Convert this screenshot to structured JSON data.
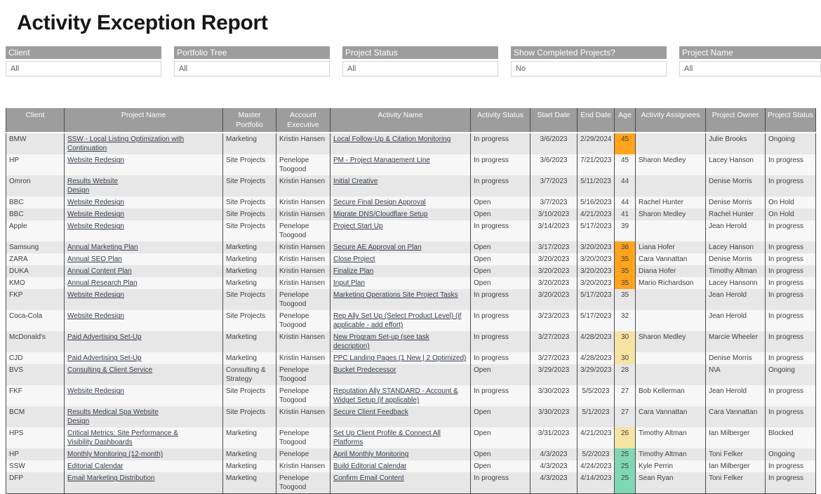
{
  "title": "Activity Exception Report",
  "filters": [
    {
      "label": "Client",
      "value": "All"
    },
    {
      "label": "Portfolio Tree",
      "value": "All"
    },
    {
      "label": "Project Status",
      "value": "All"
    },
    {
      "label": "Show Completed Projects?",
      "value": "No"
    },
    {
      "label": "Project Name",
      "value": "All"
    }
  ],
  "colors": {
    "header-gray": "#9d9d9d",
    "line-dark": "#4b4b4b",
    "age-orange": "#ffa41c",
    "age-yellow": "#f7e3a2",
    "age-teal": "#7fd8b4"
  },
  "table": {
    "columns": [
      "Client",
      "Project Name",
      "Master Portfolio",
      "Account Executive",
      "Activity Name",
      "Activity Status",
      "Start Date",
      "End Date",
      "Age",
      "Activity Assignees",
      "Project Owner",
      "Project Status"
    ],
    "rows": [
      {
        "cells": [
          "BMW",
          "SSW - Local Listing Optimization with Continuation",
          "Marketing",
          "Kristin Hansen",
          "Local Follow-Up & Citation Monitoring",
          "In progress",
          "3/6/2023",
          "2/29/2024",
          "45",
          "",
          "Julie Brooks",
          "Ongoing"
        ],
        "age_color": "orange"
      },
      {
        "cells": [
          "HP",
          "Website Redesign",
          "Site Projects",
          "Penelope Toogood",
          "PM - Project Management Line",
          "In progress",
          "3/6/2023",
          "7/21/2023",
          "45",
          "Sharon Medley",
          "Lacey Hanson",
          "In progress"
        ],
        "age_color": null
      },
      {
        "cells": [
          "Omron",
          "Results Website\nDesign",
          "Site Projects",
          "Kristin Hansen",
          "Initial Creative",
          "In progress",
          "3/7/2023",
          "5/11/2023",
          "44",
          "",
          "Denise Morris",
          "In progress"
        ],
        "age_color": null
      },
      {
        "cells": [
          "BBC",
          "Website Redesign",
          "Site Projects",
          "Kristin Hansen",
          "Secure Final Design Approval",
          "Open",
          "3/7/2023",
          "5/16/2023",
          "44",
          "Rachel Hunter",
          "Denise Morris",
          "On Hold"
        ],
        "age_color": null
      },
      {
        "cells": [
          "BBC",
          "Website Redesign",
          "Site Projects",
          "Kristin Hansen",
          "Migrate DNS/Cloudflare Setup",
          "Open",
          "3/10/2023",
          "4/21/2023",
          "41",
          "Sharon Medley",
          "Rachel Hunter",
          "On Hold"
        ],
        "age_color": null
      },
      {
        "cells": [
          "Apple",
          "Website Redesign",
          "Site Projects",
          "Penelope Toogood",
          "Project Start Up",
          "In progress",
          "3/14/2023",
          "5/17/2023",
          "39",
          "",
          "Jean Herold",
          "In progress"
        ],
        "age_color": null
      },
      {
        "cells": [
          "Samsung",
          "Annual Marketing Plan",
          "Marketing",
          "Kristin Hansen",
          "Secure AE Approval on Plan",
          "Open",
          "3/17/2023",
          "3/20/2023",
          "36",
          "Liana Hofer",
          "Lacey Hanson",
          "In progress"
        ],
        "age_color": "orange"
      },
      {
        "cells": [
          "ZARA",
          "Annual SEO Plan",
          "Marketing",
          "Kristin Hansen",
          "Close Project",
          "Open",
          "3/20/2023",
          "3/20/2023",
          "35",
          "Cara Vannattan",
          "Denise Morris",
          "In progress"
        ],
        "age_color": "orange"
      },
      {
        "cells": [
          "DUKA",
          "Annual Content Plan",
          "Marketing",
          "Kristin Hansen",
          "Finalize Plan",
          "Open",
          "3/20/2023",
          "3/20/2023",
          "35",
          "Diana Hofer",
          "Timothy Altman",
          "In progress"
        ],
        "age_color": "orange"
      },
      {
        "cells": [
          "KMO",
          "Annual Research Plan",
          "Marketing",
          "Kristin Hansen",
          "Input Plan",
          "Open",
          "3/20/2023",
          "3/20/2023",
          "35",
          "Mario Richardson",
          "Lacey Hansonn",
          "In progress"
        ],
        "age_color": "orange"
      },
      {
        "cells": [
          "FKP",
          "Website Redesign",
          "Site Projects",
          "Penelope Toogood",
          "Marketing Operations Site Project Tasks",
          "In progress",
          "3/20/2023",
          "5/17/2023",
          "35",
          "",
          "Jean Herold",
          "In progress"
        ],
        "age_color": null
      },
      {
        "cells": [
          "Coca-Cola",
          "Website Redesign",
          "Site Projects",
          "Penelope Toogood",
          "Rep Ally Set Up (Select Product Level) (if applicable - add effort)",
          "In progress",
          "3/23/2023",
          "5/17/2023",
          "32",
          "",
          "Jean Herold",
          "In progress"
        ],
        "age_color": null
      },
      {
        "cells": [
          "McDonald's",
          "Paid Advertising Set-Up",
          "Marketing",
          "Kristin Hansen",
          "New Program Set-up (see task description)",
          "In progress",
          "3/27/2023",
          "4/28/2023",
          "30",
          "Sharon Medley",
          "Marcie Wheeler",
          "In progress"
        ],
        "age_color": "yellow"
      },
      {
        "cells": [
          "CJD",
          "Paid Advertising Set-Up",
          "Marketing",
          "Kristin Hansen",
          "PPC Landing Pages (1 New | 2 Optimized)",
          "In progress",
          "3/27/2023",
          "4/28/2023",
          "30",
          "",
          "Denise Morris",
          "In progress"
        ],
        "age_color": "yellow"
      },
      {
        "cells": [
          "BVS",
          "Consulting & Client Service",
          "Consulting & Strategy",
          "Penelope Toogood",
          "Bucket Predecessor",
          "Open",
          "3/29/2023",
          "3/29/2023",
          "28",
          "",
          "N\\A",
          "Ongoing"
        ],
        "age_color": null
      },
      {
        "cells": [
          "FKF",
          "Website Redesign",
          "Site Projects",
          "Penelope Toogood",
          "Reputation Ally STANDARD - Account & Widget Setup (if applicable)",
          "In progress",
          "3/30/2023",
          "5/5/2023",
          "27",
          "Bob Kellerman",
          "Jean Herold",
          "In progress"
        ],
        "age_color": null
      },
      {
        "cells": [
          "BCM",
          "Results Medical Spa Website\nDesign",
          "Site Projects",
          "Kristin Hansen",
          "Secure Client Feedback",
          "Open",
          "3/30/2023",
          "5/1/2023",
          "27",
          "Cara Vannattan",
          "Cara Vannattan",
          "In progress"
        ],
        "age_color": null
      },
      {
        "cells": [
          "HPS",
          "Critical Metrics: Site Performance &\nVisibility Dashboards",
          "Marketing",
          "Penelope Toogood",
          "Set Up Client Profile & Connect All\nPlatforms",
          "Open",
          "3/31/2023",
          "4/21/2023",
          "26",
          "Timothy Altman",
          "Ian Milberger",
          "Blocked"
        ],
        "age_color": "yellow"
      },
      {
        "cells": [
          "HP",
          "Monthly Monitoring (12-month)",
          "Marketing",
          "Penelope",
          "April Monthly Monitoring",
          "Open",
          "4/3/2023",
          "5/2/2023",
          "25",
          "Timothy Altman",
          "Toni Felker",
          "Ongoing"
        ],
        "age_color": "teal"
      },
      {
        "cells": [
          "SSW",
          "Editorial Calendar",
          "Marketing",
          "Kristin Hansen",
          "Build Editorial Calendar",
          "Open",
          "4/3/2023",
          "4/24/2023",
          "25",
          "Kyle Perrin",
          "Ian Milberger",
          "In progress"
        ],
        "age_color": "teal"
      },
      {
        "cells": [
          "DFP",
          "Email Marketing Distribution",
          "Marketing",
          "Penelope Toogood",
          "Confirm Email Content",
          "In progress",
          "4/3/2023",
          "4/14/2023",
          "25",
          "Sean Ryan",
          "Toni Felker",
          "In progress"
        ],
        "age_color": "teal"
      }
    ]
  }
}
